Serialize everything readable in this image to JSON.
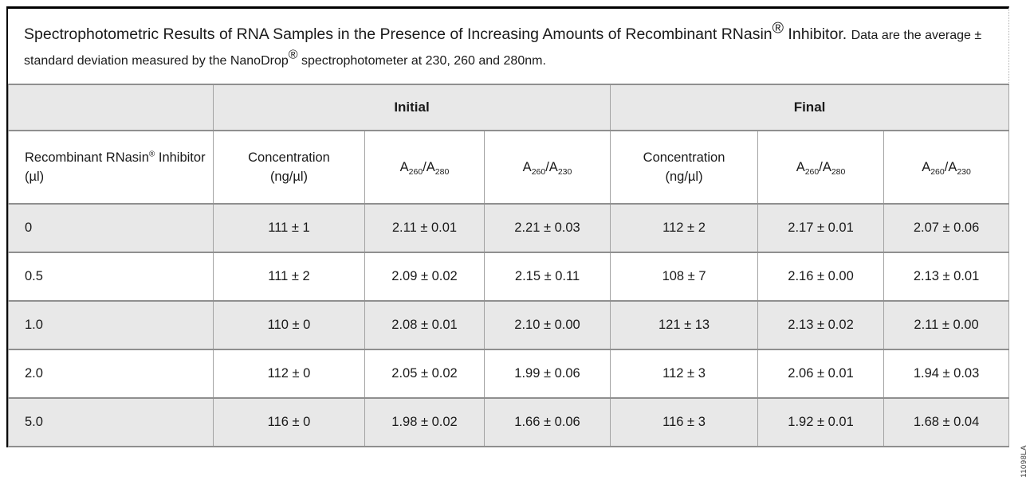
{
  "figure": {
    "caption_parts": [
      {
        "t": "Spectrophotometric Results of RNA Samples in the Presence of Increasing Amounts of Recombinant RNasin",
        "cls": "t-big"
      },
      {
        "t": "®",
        "sup": true,
        "cls": "t-big"
      },
      {
        "t": " Inhibitor. ",
        "cls": "t-big"
      },
      {
        "t": "Data are the average ± standard deviation measured by the NanoDrop",
        "cls": "t-small"
      },
      {
        "t": "®",
        "sup": true,
        "cls": "t-small"
      },
      {
        "t": " spectrophotometer at 230, 260 and 280nm.",
        "cls": "t-small"
      }
    ],
    "code": "11098LA"
  },
  "table": {
    "groups": [
      "Initial",
      "Final"
    ],
    "columns": [
      {
        "name": "col-inhibitor",
        "align": "left",
        "parts": [
          {
            "t": "Recombinant RNasin"
          },
          {
            "t": "®",
            "sup": true
          },
          {
            "t": " Inhibitor (µl)"
          }
        ]
      },
      {
        "name": "col-initial-concentration",
        "align": "center",
        "parts": [
          {
            "t": "Concentration"
          },
          {
            "br": true
          },
          {
            "t": "(ng/µl)"
          }
        ]
      },
      {
        "name": "col-initial-a260-a280",
        "align": "center",
        "parts": [
          {
            "t": "A"
          },
          {
            "t": "260",
            "sub": true
          },
          {
            "t": "/A"
          },
          {
            "t": "280",
            "sub": true
          }
        ]
      },
      {
        "name": "col-initial-a260-a230",
        "align": "center",
        "parts": [
          {
            "t": "A"
          },
          {
            "t": "260",
            "sub": true
          },
          {
            "t": "/A"
          },
          {
            "t": "230",
            "sub": true
          }
        ]
      },
      {
        "name": "col-final-concentration",
        "align": "center",
        "parts": [
          {
            "t": "Concentration"
          },
          {
            "br": true
          },
          {
            "t": "(ng/µl)"
          }
        ]
      },
      {
        "name": "col-final-a260-a280",
        "align": "center",
        "parts": [
          {
            "t": "A"
          },
          {
            "t": "260",
            "sub": true
          },
          {
            "t": "/A"
          },
          {
            "t": "280",
            "sub": true
          }
        ]
      },
      {
        "name": "col-final-a260-a230",
        "align": "center",
        "parts": [
          {
            "t": "A"
          },
          {
            "t": "260",
            "sub": true
          },
          {
            "t": "/A"
          },
          {
            "t": "230",
            "sub": true
          }
        ]
      }
    ],
    "rows": [
      {
        "inhibitor": "0",
        "cells": [
          "111 ± 1",
          "2.11 ± 0.01",
          "2.21 ± 0.03",
          "112 ± 2",
          "2.17 ± 0.01",
          "2.07 ± 0.06"
        ]
      },
      {
        "inhibitor": "0.5",
        "cells": [
          "111 ± 2",
          "2.09 ± 0.02",
          "2.15 ± 0.11",
          "108 ± 7",
          "2.16 ± 0.00",
          "2.13 ± 0.01"
        ]
      },
      {
        "inhibitor": "1.0",
        "cells": [
          "110 ± 0",
          "2.08 ± 0.01",
          "2.10 ± 0.00",
          "121 ± 13",
          "2.13 ± 0.02",
          "2.11 ± 0.00"
        ]
      },
      {
        "inhibitor": "2.0",
        "cells": [
          "112 ± 0",
          "2.05 ± 0.02",
          "1.99 ± 0.06",
          "112 ± 3",
          "2.06 ± 0.01",
          "1.94 ± 0.03"
        ]
      },
      {
        "inhibitor": "5.0",
        "cells": [
          "116 ± 0",
          "1.98 ± 0.02",
          "1.66 ± 0.06",
          "116 ± 3",
          "1.92 ± 0.01",
          "1.68 ± 0.04"
        ]
      }
    ]
  },
  "colors": {
    "row_shade": "#e8e8e8",
    "grid": "#a3a3a3",
    "grid_heavy": "#8f8f8f",
    "frame": "#000000",
    "text": "#1a1a1a"
  }
}
